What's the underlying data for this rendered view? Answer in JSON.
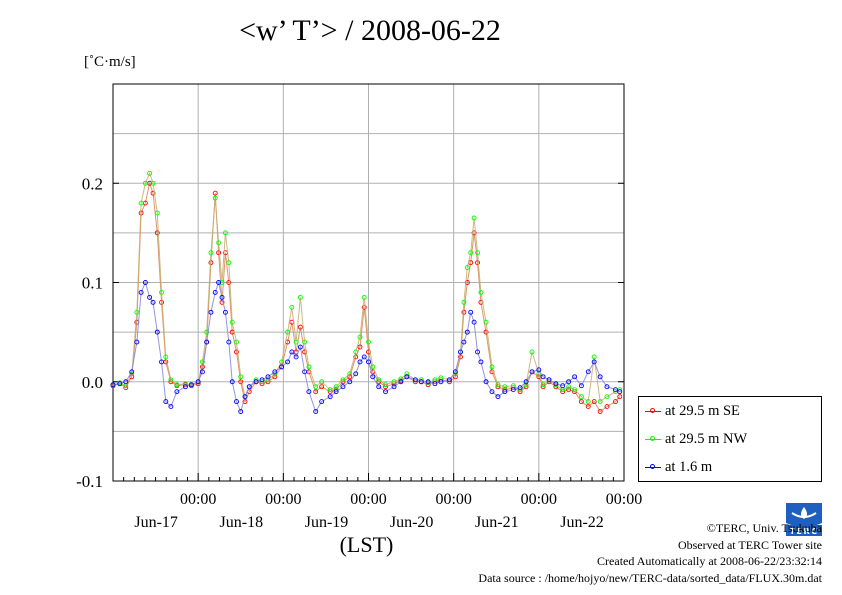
{
  "title": "<w’ T’> / 2008-06-22",
  "unit": "[˚C·m/s]",
  "chart_data": {
    "type": "line",
    "title": "<w’ T’> / 2008-06-22",
    "ylabel": "[˚C·m/s]",
    "xlabel": "(LST)",
    "ylim": [
      -0.1,
      0.3
    ],
    "xlim": [
      0,
      6
    ],
    "yticks": [
      {
        "value": -0.1,
        "label": "-0.1"
      },
      {
        "value": 0.0,
        "label": "0.0"
      },
      {
        "value": 0.1,
        "label": "0.1"
      },
      {
        "value": 0.2,
        "label": "0.2"
      }
    ],
    "xticks": [
      {
        "value": 1,
        "time": "00:00",
        "date": "Jun-17"
      },
      {
        "value": 2,
        "time": "00:00",
        "date": "Jun-18"
      },
      {
        "value": 3,
        "time": "00:00",
        "date": "Jun-19"
      },
      {
        "value": 4,
        "time": "00:00",
        "date": "Jun-20"
      },
      {
        "value": 5,
        "time": "00:00",
        "date": "Jun-21"
      },
      {
        "value": 6,
        "time": "00:00",
        "date": "Jun-22"
      }
    ],
    "grid": true,
    "legend_position": "bottom-right",
    "series": [
      {
        "name": "at 29.5 m SE",
        "color": "#ff0000",
        "points": [
          [
            0.0,
            -0.004
          ],
          [
            0.08,
            -0.002
          ],
          [
            0.15,
            -0.006
          ],
          [
            0.22,
            0.005
          ],
          [
            0.28,
            0.06
          ],
          [
            0.33,
            0.17
          ],
          [
            0.38,
            0.18
          ],
          [
            0.43,
            0.2
          ],
          [
            0.47,
            0.19
          ],
          [
            0.52,
            0.15
          ],
          [
            0.57,
            0.08
          ],
          [
            0.62,
            0.02
          ],
          [
            0.68,
            0.0
          ],
          [
            0.75,
            -0.004
          ],
          [
            0.85,
            -0.003
          ],
          [
            0.92,
            -0.004
          ],
          [
            1.0,
            -0.002
          ],
          [
            1.05,
            0.015
          ],
          [
            1.1,
            0.04
          ],
          [
            1.15,
            0.12
          ],
          [
            1.2,
            0.19
          ],
          [
            1.24,
            0.13
          ],
          [
            1.28,
            0.08
          ],
          [
            1.32,
            0.13
          ],
          [
            1.36,
            0.1
          ],
          [
            1.4,
            0.05
          ],
          [
            1.45,
            0.03
          ],
          [
            1.5,
            0.0
          ],
          [
            1.55,
            -0.02
          ],
          [
            1.6,
            -0.01
          ],
          [
            1.68,
            0.0
          ],
          [
            1.75,
            -0.002
          ],
          [
            1.82,
            0.0
          ],
          [
            1.9,
            0.005
          ],
          [
            1.98,
            0.015
          ],
          [
            2.05,
            0.04
          ],
          [
            2.1,
            0.06
          ],
          [
            2.15,
            0.03
          ],
          [
            2.2,
            0.055
          ],
          [
            2.25,
            0.03
          ],
          [
            2.3,
            0.01
          ],
          [
            2.38,
            -0.01
          ],
          [
            2.45,
            -0.005
          ],
          [
            2.55,
            -0.01
          ],
          [
            2.62,
            -0.008
          ],
          [
            2.7,
            0.0
          ],
          [
            2.78,
            0.005
          ],
          [
            2.85,
            0.025
          ],
          [
            2.9,
            0.035
          ],
          [
            2.95,
            0.075
          ],
          [
            3.0,
            0.03
          ],
          [
            3.05,
            0.01
          ],
          [
            3.12,
            0.0
          ],
          [
            3.2,
            -0.005
          ],
          [
            3.3,
            -0.002
          ],
          [
            3.38,
            0.001
          ],
          [
            3.45,
            0.005
          ],
          [
            3.55,
            0.0
          ],
          [
            3.62,
            0.0
          ],
          [
            3.7,
            -0.003
          ],
          [
            3.78,
            0.0
          ],
          [
            3.85,
            0.002
          ],
          [
            3.95,
            0.0
          ],
          [
            4.02,
            0.005
          ],
          [
            4.08,
            0.025
          ],
          [
            4.12,
            0.07
          ],
          [
            4.16,
            0.1
          ],
          [
            4.2,
            0.12
          ],
          [
            4.24,
            0.15
          ],
          [
            4.28,
            0.12
          ],
          [
            4.32,
            0.08
          ],
          [
            4.38,
            0.05
          ],
          [
            4.45,
            0.01
          ],
          [
            4.52,
            -0.005
          ],
          [
            4.6,
            -0.008
          ],
          [
            4.7,
            -0.006
          ],
          [
            4.78,
            -0.01
          ],
          [
            4.85,
            -0.005
          ],
          [
            4.92,
            0.01
          ],
          [
            5.0,
            0.005
          ],
          [
            5.05,
            -0.005
          ],
          [
            5.12,
            0.0
          ],
          [
            5.2,
            -0.005
          ],
          [
            5.28,
            -0.01
          ],
          [
            5.35,
            -0.008
          ],
          [
            5.42,
            -0.01
          ],
          [
            5.5,
            -0.02
          ],
          [
            5.58,
            -0.025
          ],
          [
            5.65,
            -0.02
          ],
          [
            5.72,
            -0.03
          ],
          [
            5.8,
            -0.025
          ],
          [
            5.9,
            -0.02
          ],
          [
            5.95,
            -0.015
          ]
        ]
      },
      {
        "name": "at 29.5 m NW",
        "color": "#00ff00",
        "points": [
          [
            0.0,
            -0.003
          ],
          [
            0.08,
            -0.001
          ],
          [
            0.15,
            -0.004
          ],
          [
            0.22,
            0.008
          ],
          [
            0.28,
            0.07
          ],
          [
            0.33,
            0.18
          ],
          [
            0.38,
            0.2
          ],
          [
            0.43,
            0.21
          ],
          [
            0.47,
            0.2
          ],
          [
            0.52,
            0.17
          ],
          [
            0.57,
            0.09
          ],
          [
            0.62,
            0.025
          ],
          [
            0.68,
            0.002
          ],
          [
            0.75,
            -0.003
          ],
          [
            0.85,
            -0.002
          ],
          [
            0.92,
            -0.003
          ],
          [
            1.0,
            0.0
          ],
          [
            1.05,
            0.02
          ],
          [
            1.1,
            0.05
          ],
          [
            1.15,
            0.13
          ],
          [
            1.2,
            0.185
          ],
          [
            1.24,
            0.14
          ],
          [
            1.28,
            0.1
          ],
          [
            1.32,
            0.15
          ],
          [
            1.36,
            0.12
          ],
          [
            1.4,
            0.06
          ],
          [
            1.45,
            0.04
          ],
          [
            1.5,
            0.005
          ],
          [
            1.55,
            -0.015
          ],
          [
            1.6,
            -0.005
          ],
          [
            1.68,
            0.002
          ],
          [
            1.75,
            0.0
          ],
          [
            1.82,
            0.002
          ],
          [
            1.9,
            0.008
          ],
          [
            1.98,
            0.02
          ],
          [
            2.05,
            0.05
          ],
          [
            2.1,
            0.075
          ],
          [
            2.15,
            0.04
          ],
          [
            2.2,
            0.085
          ],
          [
            2.25,
            0.04
          ],
          [
            2.3,
            0.015
          ],
          [
            2.38,
            -0.005
          ],
          [
            2.45,
            0.0
          ],
          [
            2.55,
            -0.008
          ],
          [
            2.62,
            -0.005
          ],
          [
            2.7,
            0.002
          ],
          [
            2.78,
            0.008
          ],
          [
            2.85,
            0.03
          ],
          [
            2.9,
            0.045
          ],
          [
            2.95,
            0.085
          ],
          [
            3.0,
            0.04
          ],
          [
            3.05,
            0.015
          ],
          [
            3.12,
            0.002
          ],
          [
            3.2,
            -0.003
          ],
          [
            3.3,
            0.0
          ],
          [
            3.38,
            0.003
          ],
          [
            3.45,
            0.008
          ],
          [
            3.55,
            0.002
          ],
          [
            3.62,
            0.002
          ],
          [
            3.7,
            -0.001
          ],
          [
            3.78,
            0.002
          ],
          [
            3.85,
            0.004
          ],
          [
            3.95,
            0.002
          ],
          [
            4.02,
            0.008
          ],
          [
            4.08,
            0.03
          ],
          [
            4.12,
            0.08
          ],
          [
            4.16,
            0.115
          ],
          [
            4.2,
            0.13
          ],
          [
            4.24,
            0.165
          ],
          [
            4.28,
            0.13
          ],
          [
            4.32,
            0.09
          ],
          [
            4.38,
            0.06
          ],
          [
            4.45,
            0.015
          ],
          [
            4.52,
            -0.003
          ],
          [
            4.6,
            -0.005
          ],
          [
            4.7,
            -0.004
          ],
          [
            4.78,
            -0.008
          ],
          [
            4.85,
            -0.003
          ],
          [
            4.92,
            0.03
          ],
          [
            5.0,
            0.008
          ],
          [
            5.05,
            -0.003
          ],
          [
            5.12,
            0.002
          ],
          [
            5.2,
            -0.003
          ],
          [
            5.28,
            -0.008
          ],
          [
            5.35,
            -0.005
          ],
          [
            5.42,
            -0.008
          ],
          [
            5.5,
            -0.015
          ],
          [
            5.58,
            -0.02
          ],
          [
            5.65,
            0.025
          ],
          [
            5.72,
            -0.02
          ],
          [
            5.8,
            -0.015
          ],
          [
            5.9,
            -0.01
          ],
          [
            5.95,
            -0.008
          ]
        ]
      },
      {
        "name": "at 1.6 m",
        "color": "#0000ff",
        "points": [
          [
            0.0,
            -0.003
          ],
          [
            0.08,
            -0.002
          ],
          [
            0.15,
            0.0
          ],
          [
            0.22,
            0.01
          ],
          [
            0.28,
            0.04
          ],
          [
            0.33,
            0.09
          ],
          [
            0.38,
            0.1
          ],
          [
            0.43,
            0.085
          ],
          [
            0.47,
            0.08
          ],
          [
            0.52,
            0.05
          ],
          [
            0.57,
            0.02
          ],
          [
            0.62,
            -0.02
          ],
          [
            0.68,
            -0.025
          ],
          [
            0.75,
            -0.01
          ],
          [
            0.85,
            -0.005
          ],
          [
            0.92,
            -0.003
          ],
          [
            1.0,
            0.0
          ],
          [
            1.05,
            0.01
          ],
          [
            1.1,
            0.04
          ],
          [
            1.15,
            0.07
          ],
          [
            1.2,
            0.09
          ],
          [
            1.24,
            0.1
          ],
          [
            1.28,
            0.085
          ],
          [
            1.32,
            0.07
          ],
          [
            1.36,
            0.04
          ],
          [
            1.4,
            0.0
          ],
          [
            1.45,
            -0.02
          ],
          [
            1.5,
            -0.03
          ],
          [
            1.55,
            -0.015
          ],
          [
            1.6,
            -0.005
          ],
          [
            1.68,
            0.0
          ],
          [
            1.75,
            0.002
          ],
          [
            1.82,
            0.005
          ],
          [
            1.9,
            0.01
          ],
          [
            1.98,
            0.015
          ],
          [
            2.05,
            0.02
          ],
          [
            2.1,
            0.03
          ],
          [
            2.15,
            0.025
          ],
          [
            2.2,
            0.035
          ],
          [
            2.25,
            0.01
          ],
          [
            2.3,
            -0.01
          ],
          [
            2.38,
            -0.03
          ],
          [
            2.45,
            -0.02
          ],
          [
            2.55,
            -0.015
          ],
          [
            2.62,
            -0.01
          ],
          [
            2.7,
            -0.005
          ],
          [
            2.78,
            0.0
          ],
          [
            2.85,
            0.008
          ],
          [
            2.9,
            0.02
          ],
          [
            2.95,
            0.025
          ],
          [
            3.0,
            0.02
          ],
          [
            3.05,
            0.005
          ],
          [
            3.12,
            -0.005
          ],
          [
            3.2,
            -0.01
          ],
          [
            3.3,
            -0.005
          ],
          [
            3.38,
            0.0
          ],
          [
            3.45,
            0.005
          ],
          [
            3.55,
            0.002
          ],
          [
            3.62,
            0.0
          ],
          [
            3.7,
            0.0
          ],
          [
            3.78,
            -0.002
          ],
          [
            3.85,
            0.0
          ],
          [
            3.95,
            0.002
          ],
          [
            4.02,
            0.01
          ],
          [
            4.08,
            0.03
          ],
          [
            4.12,
            0.04
          ],
          [
            4.16,
            0.05
          ],
          [
            4.2,
            0.07
          ],
          [
            4.24,
            0.06
          ],
          [
            4.28,
            0.03
          ],
          [
            4.32,
            0.02
          ],
          [
            4.38,
            0.0
          ],
          [
            4.45,
            -0.01
          ],
          [
            4.52,
            -0.015
          ],
          [
            4.6,
            -0.01
          ],
          [
            4.7,
            -0.008
          ],
          [
            4.78,
            -0.006
          ],
          [
            4.85,
            0.0
          ],
          [
            4.92,
            0.01
          ],
          [
            5.0,
            0.012
          ],
          [
            5.05,
            0.005
          ],
          [
            5.12,
            0.002
          ],
          [
            5.2,
            -0.002
          ],
          [
            5.28,
            -0.004
          ],
          [
            5.35,
            0.0
          ],
          [
            5.42,
            0.005
          ],
          [
            5.5,
            -0.004
          ],
          [
            5.58,
            0.01
          ],
          [
            5.65,
            0.02
          ],
          [
            5.72,
            0.005
          ],
          [
            5.8,
            -0.005
          ],
          [
            5.9,
            -0.008
          ],
          [
            5.95,
            -0.01
          ]
        ]
      }
    ]
  },
  "legend": [
    {
      "label": "at 29.5 m SE",
      "color": "#ff0000"
    },
    {
      "label": "at 29.5 m NW",
      "color": "#00ff00"
    },
    {
      "label": "at 1.6 m",
      "color": "#0000ff"
    }
  ],
  "footer": {
    "copyright": "©TERC, Univ. Tsukuba",
    "site": "Observed at TERC Tower site",
    "created": "Created Automatically at 2008-06-22/23:32:14",
    "source": "Data source : /home/hojyo/new/TERC-data/sorted_data/FLUX.30m.dat"
  },
  "logo_text": "TERC"
}
